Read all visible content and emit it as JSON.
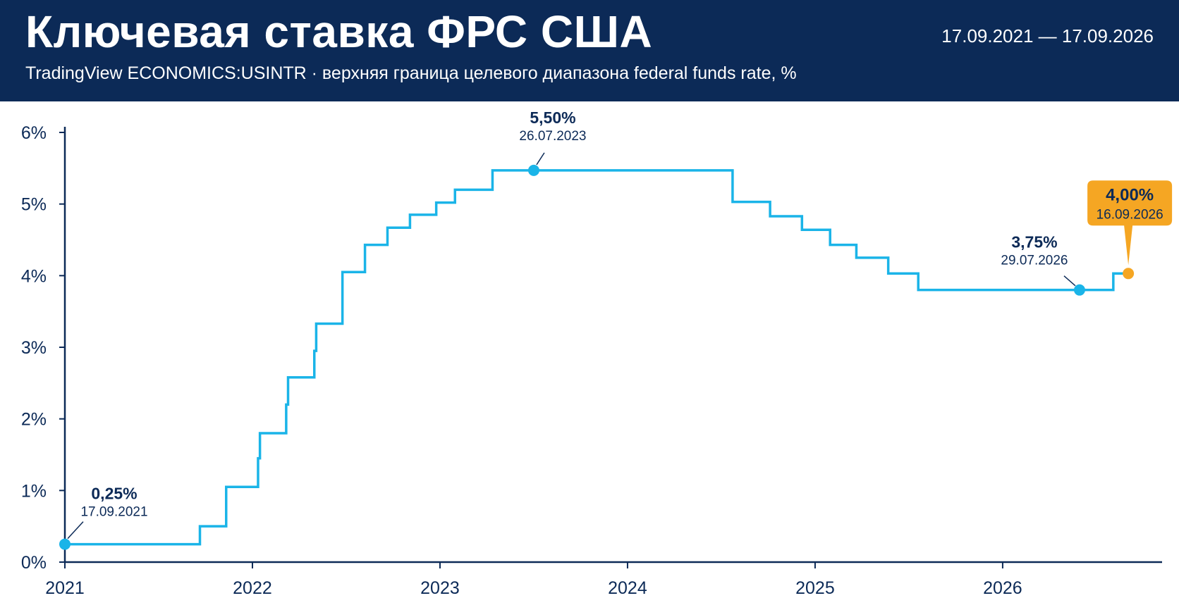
{
  "header": {
    "title": "Ключевая ставка ФРС США",
    "subtitle": "TradingView ECONOMICS:USINTR · верхняя граница целевого диапазона federal funds rate, %",
    "date_range": "17.09.2021 — 17.09.2026"
  },
  "colors": {
    "header_bg": "#0c2a57",
    "line": "#1ab4e8",
    "accent": "#f5a623",
    "text": "#0c2a57"
  },
  "chart_data": {
    "type": "line",
    "step": true,
    "x_unit": "year",
    "xlim": [
      2021.0,
      2026.85
    ],
    "ylim": [
      0,
      6
    ],
    "xlabel": "",
    "ylabel": "",
    "y_ticks": [
      0,
      1,
      2,
      3,
      4,
      5,
      6
    ],
    "y_tick_labels": [
      "0%",
      "1%",
      "2%",
      "3%",
      "4%",
      "5%",
      "6%"
    ],
    "x_ticks": [
      2021,
      2022,
      2023,
      2024,
      2025,
      2026
    ],
    "x_tick_labels": [
      "2021",
      "2022",
      "2023",
      "2024",
      "2025",
      "2026"
    ],
    "grid": false,
    "series": [
      {
        "points": [
          [
            2021.0,
            0.25
          ],
          [
            2021.72,
            0.5
          ],
          [
            2021.86,
            1.05
          ],
          [
            2022.03,
            1.45
          ],
          [
            2022.04,
            1.8
          ],
          [
            2022.18,
            2.2
          ],
          [
            2022.19,
            2.58
          ],
          [
            2022.33,
            2.95
          ],
          [
            2022.34,
            3.33
          ],
          [
            2022.48,
            4.05
          ],
          [
            2022.6,
            4.43
          ],
          [
            2022.72,
            4.67
          ],
          [
            2022.84,
            4.85
          ],
          [
            2022.98,
            5.02
          ],
          [
            2023.08,
            5.2
          ],
          [
            2023.28,
            5.47
          ],
          [
            2024.56,
            5.03
          ],
          [
            2024.76,
            4.83
          ],
          [
            2024.93,
            4.64
          ],
          [
            2025.08,
            4.43
          ],
          [
            2025.22,
            4.25
          ],
          [
            2025.39,
            4.03
          ],
          [
            2025.55,
            3.8
          ],
          [
            2026.59,
            4.03
          ],
          [
            2026.67,
            4.03
          ]
        ]
      }
    ],
    "annotations": [
      {
        "x": 2021.0,
        "y": 0.25,
        "value": "0,25%",
        "date": "17.09.2021",
        "highlight": false
      },
      {
        "x": 2023.5,
        "y": 5.47,
        "value": "5,50%",
        "date": "26.07.2023",
        "highlight": false
      },
      {
        "x": 2026.41,
        "y": 3.8,
        "value": "3,75%",
        "date": "29.07.2026",
        "highlight": false
      },
      {
        "x": 2026.67,
        "y": 4.03,
        "value": "4,00%",
        "date": "16.09.2026",
        "highlight": true
      }
    ]
  }
}
